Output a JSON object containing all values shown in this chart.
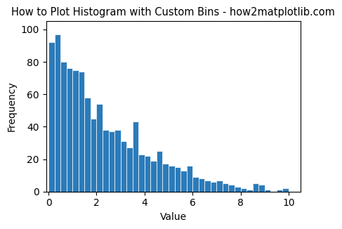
{
  "title": "How to Plot Histogram with Custom Bins - how2matplotlib.com",
  "xlabel": "Value",
  "ylabel": "Frequency",
  "bar_color": "#2b7bba",
  "edge_color": "white",
  "xlim": [
    -0.1,
    10.5
  ],
  "ylim": [
    0,
    105
  ],
  "yticks": [
    0,
    20,
    40,
    60,
    80,
    100
  ],
  "xticks": [
    0,
    2,
    4,
    6,
    8,
    10
  ],
  "title_fontsize": 10.5,
  "bin_start": 0,
  "bin_end": 10,
  "n_bins": 40,
  "bar_heights": [
    92,
    97,
    80,
    76,
    75,
    74,
    58,
    45,
    54,
    38,
    37,
    38,
    31,
    27,
    43,
    23,
    22,
    19,
    25,
    17,
    16,
    15,
    13,
    16,
    9,
    8,
    7,
    6,
    7,
    5,
    4,
    3,
    2,
    1,
    5,
    4,
    1,
    0,
    1,
    2
  ]
}
